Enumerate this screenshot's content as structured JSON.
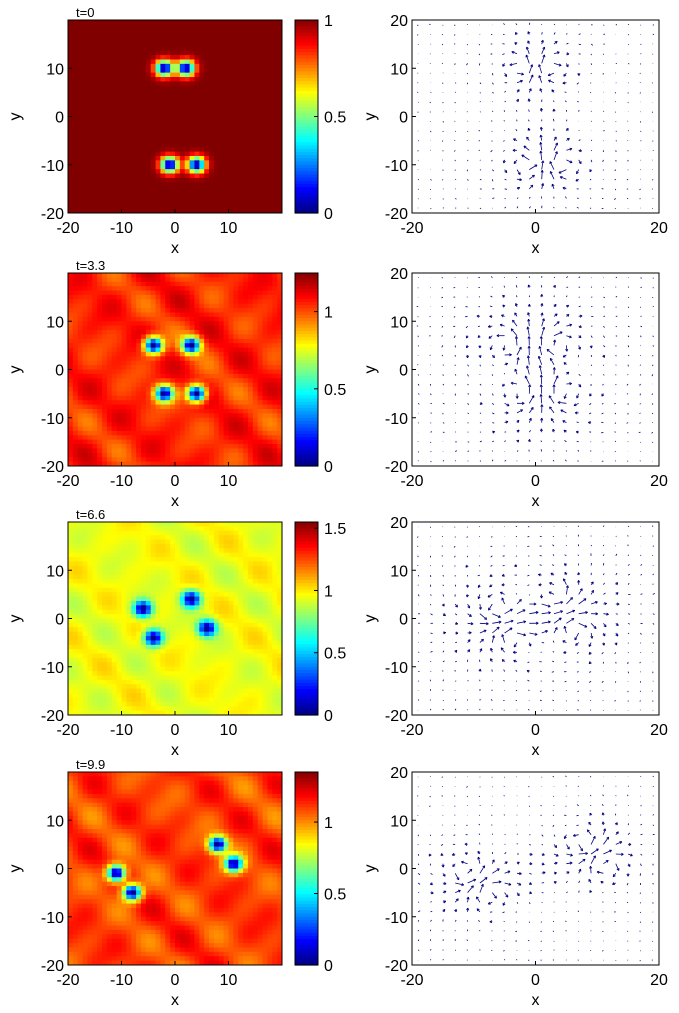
{
  "chart_data": [
    {
      "type": "heatmap",
      "panel": "density",
      "title": "t=0",
      "xlabel": "x",
      "ylabel": "y",
      "xlim": [
        -20,
        20
      ],
      "ylim": [
        -20,
        20
      ],
      "x_ticks": [
        "-20",
        "-10",
        "0",
        "10"
      ],
      "y_ticks": [
        "10",
        "0",
        "-10",
        "-20"
      ],
      "colorbar": {
        "min": 0,
        "max": 1.0,
        "ticks": [
          "0",
          "0.5",
          "1"
        ],
        "colormap": "jet"
      },
      "background_level": 1.0,
      "ripple": 0,
      "vortices": [
        {
          "x": -2,
          "y": 10
        },
        {
          "x": 2,
          "y": 10
        },
        {
          "x": -1,
          "y": -10
        },
        {
          "x": 4,
          "y": -10
        }
      ]
    },
    {
      "type": "quiver",
      "panel": "current",
      "xlabel": "x",
      "ylabel": "y",
      "xlim": [
        -20,
        20
      ],
      "ylim": [
        -20,
        20
      ],
      "x_ticks": [
        "-20",
        "0",
        "20"
      ],
      "y_ticks": [
        "20",
        "10",
        "0",
        "-10",
        "-20"
      ],
      "arrow_color": "#000080"
    },
    {
      "type": "heatmap",
      "panel": "density",
      "title": "t=3.3",
      "xlabel": "x",
      "ylabel": "y",
      "xlim": [
        -20,
        20
      ],
      "ylim": [
        -20,
        20
      ],
      "x_ticks": [
        "-20",
        "-10",
        "0",
        "10"
      ],
      "y_ticks": [
        "10",
        "0",
        "-10",
        "-20"
      ],
      "colorbar": {
        "min": 0,
        "max": 1.25,
        "ticks": [
          "0",
          "0.5",
          "1"
        ],
        "colormap": "jet"
      },
      "background_level": 1.05,
      "ripple": 0.12,
      "vortices": [
        {
          "x": -4,
          "y": 5
        },
        {
          "x": 3,
          "y": 5
        },
        {
          "x": -2,
          "y": -5
        },
        {
          "x": 4,
          "y": -5
        }
      ]
    },
    {
      "type": "quiver",
      "panel": "current",
      "xlabel": "x",
      "ylabel": "y",
      "xlim": [
        -20,
        20
      ],
      "ylim": [
        -20,
        20
      ],
      "x_ticks": [
        "-20",
        "0",
        "20"
      ],
      "y_ticks": [
        "20",
        "10",
        "0",
        "-10",
        "-20"
      ],
      "arrow_color": "#000080"
    },
    {
      "type": "heatmap",
      "panel": "density",
      "title": "t=6.6",
      "xlabel": "x",
      "ylabel": "y",
      "xlim": [
        -20,
        20
      ],
      "ylim": [
        -20,
        20
      ],
      "x_ticks": [
        "-20",
        "-10",
        "0",
        "10"
      ],
      "y_ticks": [
        "10",
        "0",
        "-10",
        "-20"
      ],
      "colorbar": {
        "min": 0,
        "max": 1.55,
        "ticks": [
          "0",
          "0.5",
          "1",
          "1.5"
        ],
        "colormap": "jet"
      },
      "background_level": 0.95,
      "ripple": 0.1,
      "vortices": [
        {
          "x": -6,
          "y": 2
        },
        {
          "x": -4,
          "y": -4
        },
        {
          "x": 3,
          "y": 4
        },
        {
          "x": 6,
          "y": -2
        }
      ]
    },
    {
      "type": "quiver",
      "panel": "current",
      "xlabel": "x",
      "ylabel": "y",
      "xlim": [
        -20,
        20
      ],
      "ylim": [
        -20,
        20
      ],
      "x_ticks": [
        "-20",
        "0",
        "20"
      ],
      "y_ticks": [
        "20",
        "10",
        "0",
        "-10",
        "-20"
      ],
      "arrow_color": "#000080"
    },
    {
      "type": "heatmap",
      "panel": "density",
      "title": "t=9.9",
      "xlabel": "x",
      "ylabel": "y",
      "xlim": [
        -20,
        20
      ],
      "ylim": [
        -20,
        20
      ],
      "x_ticks": [
        "-20",
        "-10",
        "0",
        "10"
      ],
      "y_ticks": [
        "10",
        "0",
        "-10",
        "-20"
      ],
      "colorbar": {
        "min": 0,
        "max": 1.35,
        "ticks": [
          "0",
          "0.5",
          "1"
        ],
        "colormap": "jet"
      },
      "background_level": 1.1,
      "ripple": 0.13,
      "vortices": [
        {
          "x": -11,
          "y": -1
        },
        {
          "x": -8,
          "y": -5
        },
        {
          "x": 8,
          "y": 5
        },
        {
          "x": 11,
          "y": 1
        }
      ]
    },
    {
      "type": "quiver",
      "panel": "current",
      "xlabel": "x",
      "ylabel": "y",
      "xlim": [
        -20,
        20
      ],
      "ylim": [
        -20,
        20
      ],
      "x_ticks": [
        "-20",
        "0",
        "20"
      ],
      "y_ticks": [
        "20",
        "10",
        "0",
        "-10",
        "-20"
      ],
      "arrow_color": "#000080"
    }
  ]
}
